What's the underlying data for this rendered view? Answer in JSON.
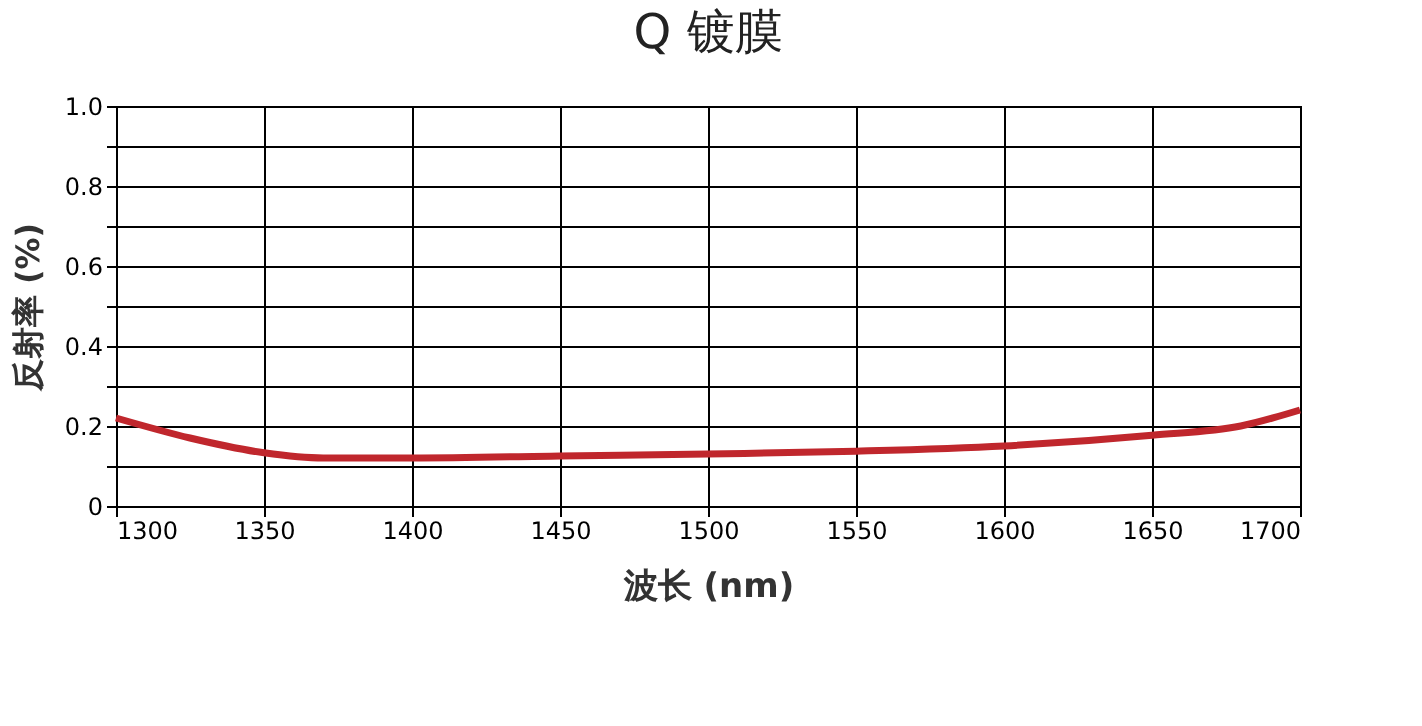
{
  "chart_data": {
    "type": "line",
    "title": "Q 镀膜",
    "xlabel": "波长 (nm)",
    "ylabel": "反射率 (%)",
    "x": [
      1300,
      1325,
      1350,
      1370,
      1400,
      1450,
      1500,
      1550,
      1600,
      1650,
      1680,
      1700
    ],
    "series": [
      {
        "color": "#c0272d",
        "values": [
          0.22,
          0.17,
          0.133,
          0.12,
          0.12,
          0.125,
          0.13,
          0.137,
          0.15,
          0.177,
          0.2,
          0.24
        ]
      }
    ],
    "xlim": [
      1300,
      1700
    ],
    "xticks": [
      1300,
      1350,
      1400,
      1450,
      1500,
      1550,
      1600,
      1650,
      1700
    ],
    "ylim": [
      0,
      1
    ],
    "yticks": [
      0,
      {
        "value": 0.1,
        "label": null
      },
      0.2,
      {
        "value": 0.3,
        "label": null
      },
      0.4,
      {
        "value": 0.5,
        "label": null
      },
      0.6,
      {
        "value": 0.7,
        "label": null
      },
      0.8,
      {
        "value": 0.9,
        "label": null
      },
      {
        "value": 1,
        "label": "1.0"
      }
    ],
    "grid": true,
    "line_style": "solid",
    "marker": "none"
  }
}
